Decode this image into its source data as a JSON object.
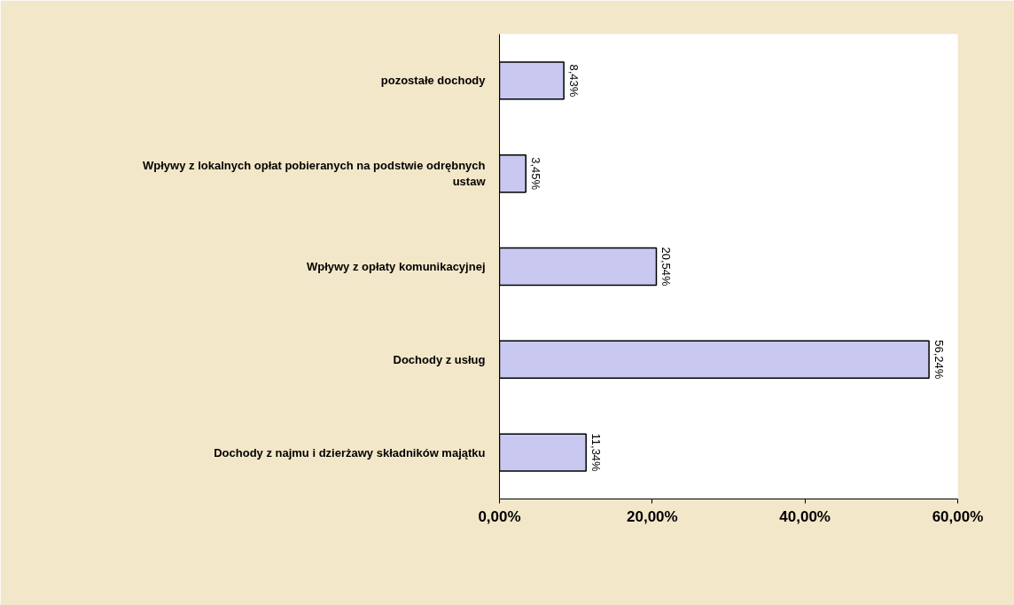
{
  "chart_data": {
    "type": "bar",
    "orientation": "horizontal",
    "categories": [
      "pozostałe dochody",
      "Wpływy z lokalnych opłat pobieranych na podstwie odrębnych ustaw",
      "Wpływy z opłaty komunikacyjnej",
      "Dochody z usług",
      "Dochody z najmu i dzierżawy składników majątku"
    ],
    "values": [
      8.43,
      3.45,
      20.54,
      56.24,
      11.34
    ],
    "value_labels": [
      "8,43%",
      "3,45%",
      "20,54%",
      "56,24%",
      "11,34%"
    ],
    "color": "#c8c8f0",
    "xlim": [
      0,
      60
    ],
    "xticks": [
      {
        "value": 0,
        "label": "0,00%"
      },
      {
        "value": 20,
        "label": "20,00%"
      },
      {
        "value": 40,
        "label": "40,00%"
      },
      {
        "value": 60,
        "label": "60,00%"
      }
    ],
    "grid": false
  }
}
